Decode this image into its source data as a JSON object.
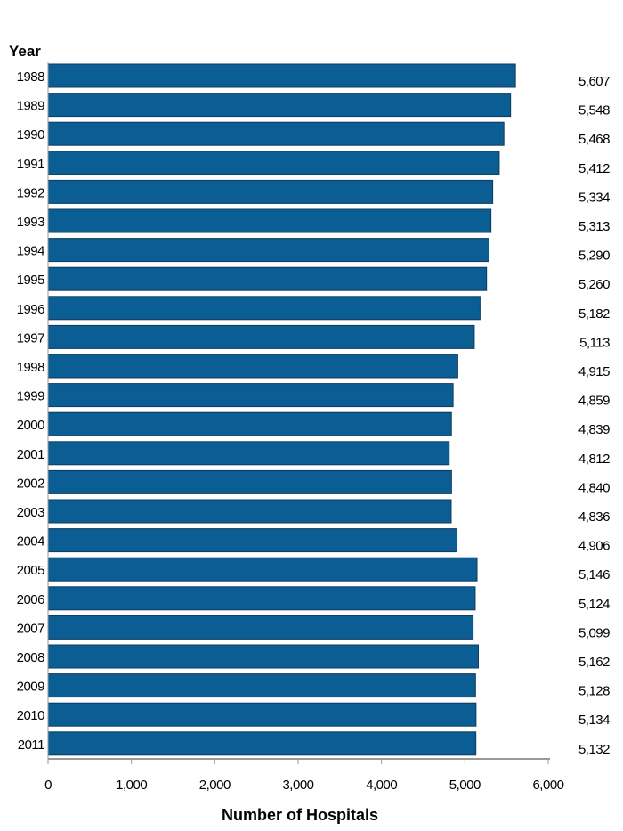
{
  "chart_data": {
    "type": "bar",
    "orientation": "horizontal",
    "ylabel": "Year",
    "xlabel": "Number of Hospitals",
    "categories": [
      "1988",
      "1989",
      "1990",
      "1991",
      "1992",
      "1993",
      "1994",
      "1995",
      "1996",
      "1997",
      "1998",
      "1999",
      "2000",
      "2001",
      "2002",
      "2003",
      "2004",
      "2005",
      "2006",
      "2007",
      "2008",
      "2009",
      "2010",
      "2011"
    ],
    "values": [
      5607,
      5548,
      5468,
      5412,
      5334,
      5313,
      5290,
      5260,
      5182,
      5113,
      4915,
      4859,
      4839,
      4812,
      4840,
      4836,
      4906,
      5146,
      5124,
      5099,
      5162,
      5128,
      5134,
      5132
    ],
    "value_labels": [
      "5,607",
      "5,548",
      "5,468",
      "5,412",
      "5,334",
      "5,313",
      "5,290",
      "5,260",
      "5,182",
      "5,113",
      "4,915",
      "4,859",
      "4,839",
      "4,812",
      "4,840",
      "4,836",
      "4,906",
      "5,146",
      "5,124",
      "5,099",
      "5,162",
      "5,128",
      "5,134",
      "5,132"
    ],
    "xlim": [
      0,
      6000
    ],
    "xticks": [
      0,
      1000,
      2000,
      3000,
      4000,
      5000,
      6000
    ],
    "xtick_labels": [
      "0",
      "1,000",
      "2,000",
      "3,000",
      "4,000",
      "5,000",
      "6,000"
    ],
    "grid": false,
    "colors": {
      "bar": "#0b5e93",
      "bar_border": "#123a5a",
      "axis": "#999999"
    }
  }
}
